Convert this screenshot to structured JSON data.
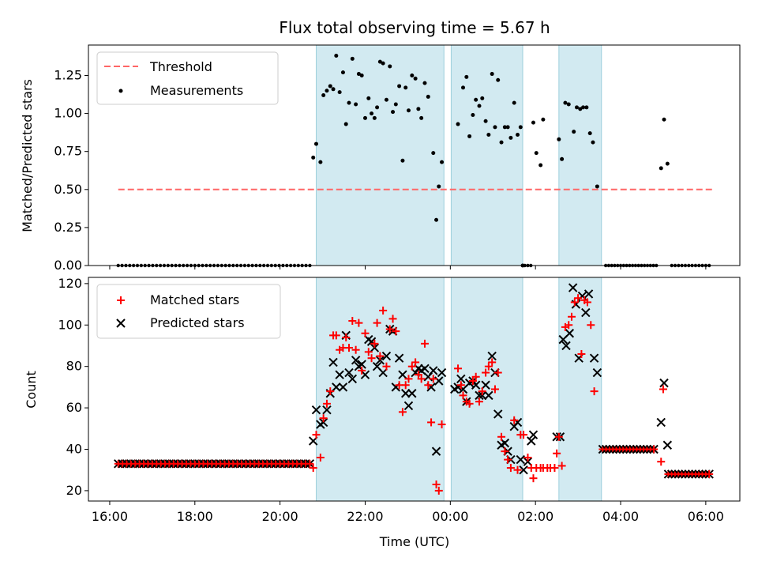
{
  "chart_data": {
    "title": "Flux total observing time = 5.67 h",
    "xlabel": "Time (UTC)",
    "x_unit": "hours relative to 00:00 UTC",
    "x_ticks": [
      {
        "value": -8,
        "label": "16:00"
      },
      {
        "value": -6,
        "label": "18:00"
      },
      {
        "value": -4,
        "label": "20:00"
      },
      {
        "value": -2,
        "label": "22:00"
      },
      {
        "value": 0,
        "label": "00:00"
      },
      {
        "value": 2,
        "label": "02:00"
      },
      {
        "value": 4,
        "label": "04:00"
      },
      {
        "value": 6,
        "label": "06:00"
      }
    ],
    "xlim": [
      -8.5,
      6.8
    ],
    "colors": {
      "shade": "#add8e6",
      "threshold": "#ff6666",
      "matched": "#ff0000",
      "predicted": "#000000",
      "measurement": "#000000"
    },
    "shaded_spans": [
      [
        -3.15,
        -0.15
      ],
      [
        0.02,
        1.7
      ],
      [
        2.55,
        3.55
      ]
    ],
    "top": {
      "type": "scatter",
      "ylabel": "Matched/Predicted stars",
      "ylim": [
        0,
        1.45
      ],
      "y_ticks": [
        {
          "value": 0,
          "label": "0.00"
        },
        {
          "value": 0.25,
          "label": "0.25"
        },
        {
          "value": 0.5,
          "label": "0.50"
        },
        {
          "value": 0.75,
          "label": "0.75"
        },
        {
          "value": 1.0,
          "label": "1.00"
        },
        {
          "value": 1.25,
          "label": "1.25"
        }
      ],
      "threshold": {
        "label": "Threshold",
        "value": 0.5,
        "x_range": [
          -7.8,
          6.15
        ]
      },
      "measurements_label": "Measurements",
      "measurements": [
        [
          -3.22,
          0.71
        ],
        [
          -3.15,
          0.8
        ],
        [
          -3.05,
          0.68
        ],
        [
          -2.98,
          1.12
        ],
        [
          -2.9,
          1.15
        ],
        [
          -2.82,
          1.18
        ],
        [
          -2.75,
          1.16
        ],
        [
          -2.68,
          1.38
        ],
        [
          -2.6,
          1.14
        ],
        [
          -2.52,
          1.27
        ],
        [
          -2.45,
          0.93
        ],
        [
          -2.38,
          1.07
        ],
        [
          -2.3,
          1.36
        ],
        [
          -2.22,
          1.06
        ],
        [
          -2.15,
          1.26
        ],
        [
          -2.08,
          1.25
        ],
        [
          -2.0,
          0.97
        ],
        [
          -1.92,
          1.1
        ],
        [
          -1.85,
          1.0
        ],
        [
          -1.78,
          0.97
        ],
        [
          -1.72,
          1.04
        ],
        [
          -1.65,
          1.34
        ],
        [
          -1.58,
          1.33
        ],
        [
          -1.5,
          1.09
        ],
        [
          -1.42,
          1.31
        ],
        [
          -1.35,
          1.01
        ],
        [
          -1.28,
          1.06
        ],
        [
          -1.2,
          1.18
        ],
        [
          -1.12,
          0.69
        ],
        [
          -1.05,
          1.17
        ],
        [
          -0.98,
          1.02
        ],
        [
          -0.9,
          1.25
        ],
        [
          -0.82,
          1.23
        ],
        [
          -0.75,
          1.03
        ],
        [
          -0.68,
          0.97
        ],
        [
          -0.6,
          1.2
        ],
        [
          -0.52,
          1.11
        ],
        [
          -0.4,
          0.74
        ],
        [
          -0.33,
          0.3
        ],
        [
          -0.27,
          0.52
        ],
        [
          -0.2,
          0.68
        ],
        [
          0.18,
          0.93
        ],
        [
          0.3,
          1.17
        ],
        [
          0.38,
          1.24
        ],
        [
          0.45,
          0.85
        ],
        [
          0.53,
          0.99
        ],
        [
          0.6,
          1.09
        ],
        [
          0.68,
          1.05
        ],
        [
          0.75,
          1.1
        ],
        [
          0.83,
          0.95
        ],
        [
          0.9,
          0.86
        ],
        [
          0.98,
          1.26
        ],
        [
          1.05,
          0.91
        ],
        [
          1.12,
          1.22
        ],
        [
          1.2,
          0.81
        ],
        [
          1.28,
          0.91
        ],
        [
          1.35,
          0.91
        ],
        [
          1.42,
          0.84
        ],
        [
          1.5,
          1.07
        ],
        [
          1.58,
          0.86
        ],
        [
          1.65,
          0.91
        ],
        [
          1.7,
          0.0
        ],
        [
          1.95,
          0.94
        ],
        [
          2.02,
          0.74
        ],
        [
          2.12,
          0.66
        ],
        [
          2.18,
          0.96
        ],
        [
          2.55,
          0.83
        ],
        [
          2.62,
          0.7
        ],
        [
          2.7,
          1.07
        ],
        [
          2.78,
          1.06
        ],
        [
          2.9,
          0.88
        ],
        [
          2.97,
          1.04
        ],
        [
          3.05,
          1.03
        ],
        [
          3.12,
          1.04
        ],
        [
          3.2,
          1.04
        ],
        [
          3.28,
          0.87
        ],
        [
          3.35,
          0.81
        ],
        [
          3.45,
          0.52
        ],
        [
          4.95,
          0.64
        ],
        [
          5.02,
          0.96
        ],
        [
          5.1,
          0.67
        ]
      ]
    },
    "bottom": {
      "type": "scatter",
      "ylabel": "Count",
      "ylim": [
        15,
        123
      ],
      "y_ticks": [
        {
          "value": 20,
          "label": "20"
        },
        {
          "value": 40,
          "label": "40"
        },
        {
          "value": 60,
          "label": "60"
        },
        {
          "value": 80,
          "label": "80"
        },
        {
          "value": 100,
          "label": "100"
        },
        {
          "value": 120,
          "label": "120"
        }
      ],
      "matched_label": "Matched stars",
      "predicted_label": "Predicted stars",
      "matched": [
        [
          -3.22,
          31
        ],
        [
          -3.15,
          47
        ],
        [
          -3.05,
          36
        ],
        [
          -2.98,
          55
        ],
        [
          -2.9,
          62
        ],
        [
          -2.82,
          68
        ],
        [
          -2.75,
          95
        ],
        [
          -2.68,
          95
        ],
        [
          -2.6,
          88
        ],
        [
          -2.52,
          89
        ],
        [
          -2.45,
          94
        ],
        [
          -2.38,
          89
        ],
        [
          -2.3,
          102
        ],
        [
          -2.22,
          88
        ],
        [
          -2.15,
          101
        ],
        [
          -2.08,
          78
        ],
        [
          -2.0,
          96
        ],
        [
          -1.92,
          87
        ],
        [
          -1.85,
          84
        ],
        [
          -1.78,
          91
        ],
        [
          -1.72,
          101
        ],
        [
          -1.65,
          85
        ],
        [
          -1.58,
          107
        ],
        [
          -1.5,
          80
        ],
        [
          -1.42,
          98
        ],
        [
          -1.35,
          103
        ],
        [
          -1.28,
          97
        ],
        [
          -1.2,
          71
        ],
        [
          -1.12,
          58
        ],
        [
          -1.05,
          71
        ],
        [
          -0.98,
          74
        ],
        [
          -0.9,
          80
        ],
        [
          -0.82,
          82
        ],
        [
          -0.75,
          76
        ],
        [
          -0.68,
          74
        ],
        [
          -0.6,
          91
        ],
        [
          -0.52,
          71
        ],
        [
          -0.45,
          53
        ],
        [
          -0.4,
          74
        ],
        [
          -0.33,
          23
        ],
        [
          -0.27,
          20
        ],
        [
          -0.2,
          52
        ],
        [
          0.18,
          79
        ],
        [
          0.25,
          71
        ],
        [
          0.3,
          66
        ],
        [
          0.38,
          63
        ],
        [
          0.45,
          62
        ],
        [
          0.53,
          73
        ],
        [
          0.6,
          75
        ],
        [
          0.68,
          63
        ],
        [
          0.75,
          68
        ],
        [
          0.83,
          77
        ],
        [
          0.9,
          80
        ],
        [
          0.98,
          82
        ],
        [
          1.05,
          69
        ],
        [
          1.12,
          77
        ],
        [
          1.2,
          46
        ],
        [
          1.28,
          39
        ],
        [
          1.35,
          35
        ],
        [
          1.42,
          31
        ],
        [
          1.5,
          54
        ],
        [
          1.58,
          30
        ],
        [
          1.65,
          47
        ],
        [
          1.72,
          47
        ],
        [
          1.82,
          36
        ],
        [
          1.9,
          31
        ],
        [
          1.95,
          26
        ],
        [
          2.02,
          31
        ],
        [
          2.12,
          31
        ],
        [
          2.18,
          31
        ],
        [
          2.28,
          31
        ],
        [
          2.35,
          31
        ],
        [
          2.45,
          31
        ],
        [
          2.5,
          38
        ],
        [
          2.55,
          46
        ],
        [
          2.62,
          32
        ],
        [
          2.7,
          99
        ],
        [
          2.78,
          100
        ],
        [
          2.85,
          104
        ],
        [
          2.92,
          111
        ],
        [
          3.0,
          113
        ],
        [
          3.08,
          86
        ],
        [
          3.15,
          112
        ],
        [
          3.22,
          111
        ],
        [
          3.3,
          100
        ],
        [
          3.38,
          68
        ]
      ],
      "predicted": [
        [
          -3.22,
          44
        ],
        [
          -3.15,
          59
        ],
        [
          -3.05,
          52
        ],
        [
          -2.98,
          53
        ],
        [
          -2.9,
          59
        ],
        [
          -2.82,
          67
        ],
        [
          -2.75,
          82
        ],
        [
          -2.68,
          70
        ],
        [
          -2.6,
          76
        ],
        [
          -2.52,
          70
        ],
        [
          -2.45,
          95
        ],
        [
          -2.38,
          77
        ],
        [
          -2.3,
          74
        ],
        [
          -2.22,
          83
        ],
        [
          -2.15,
          80
        ],
        [
          -2.08,
          81
        ],
        [
          -2.0,
          76
        ],
        [
          -1.92,
          93
        ],
        [
          -1.85,
          92
        ],
        [
          -1.78,
          89
        ],
        [
          -1.72,
          80
        ],
        [
          -1.65,
          83
        ],
        [
          -1.58,
          77
        ],
        [
          -1.5,
          85
        ],
        [
          -1.42,
          98
        ],
        [
          -1.35,
          97
        ],
        [
          -1.28,
          70
        ],
        [
          -1.2,
          84
        ],
        [
          -1.12,
          76
        ],
        [
          -1.05,
          67
        ],
        [
          -0.98,
          61
        ],
        [
          -0.9,
          67
        ],
        [
          -0.82,
          77
        ],
        [
          -0.75,
          79
        ],
        [
          -0.68,
          78
        ],
        [
          -0.6,
          79
        ],
        [
          -0.52,
          75
        ],
        [
          -0.45,
          70
        ],
        [
          -0.4,
          78
        ],
        [
          -0.33,
          39
        ],
        [
          -0.27,
          73
        ],
        [
          -0.2,
          77
        ],
        [
          0.1,
          69
        ],
        [
          0.18,
          70
        ],
        [
          0.25,
          74
        ],
        [
          0.3,
          69
        ],
        [
          0.38,
          63
        ],
        [
          0.45,
          72
        ],
        [
          0.53,
          73
        ],
        [
          0.6,
          71
        ],
        [
          0.68,
          66
        ],
        [
          0.75,
          66
        ],
        [
          0.83,
          71
        ],
        [
          0.9,
          66
        ],
        [
          0.98,
          85
        ],
        [
          1.05,
          77
        ],
        [
          1.12,
          57
        ],
        [
          1.2,
          42
        ],
        [
          1.28,
          43
        ],
        [
          1.35,
          39
        ],
        [
          1.42,
          35
        ],
        [
          1.5,
          51
        ],
        [
          1.58,
          53
        ],
        [
          1.65,
          35
        ],
        [
          1.72,
          30
        ],
        [
          1.82,
          34
        ],
        [
          1.9,
          44
        ],
        [
          1.95,
          47
        ],
        [
          2.5,
          46
        ],
        [
          2.58,
          46
        ],
        [
          2.65,
          93
        ],
        [
          2.72,
          90
        ],
        [
          2.8,
          96
        ],
        [
          2.88,
          118
        ],
        [
          2.95,
          110
        ],
        [
          3.02,
          84
        ],
        [
          3.1,
          114
        ],
        [
          3.18,
          106
        ],
        [
          3.25,
          115
        ],
        [
          3.38,
          84
        ],
        [
          3.45,
          77
        ],
        [
          4.95,
          53
        ],
        [
          5.02,
          72
        ],
        [
          5.1,
          42
        ]
      ]
    }
  }
}
